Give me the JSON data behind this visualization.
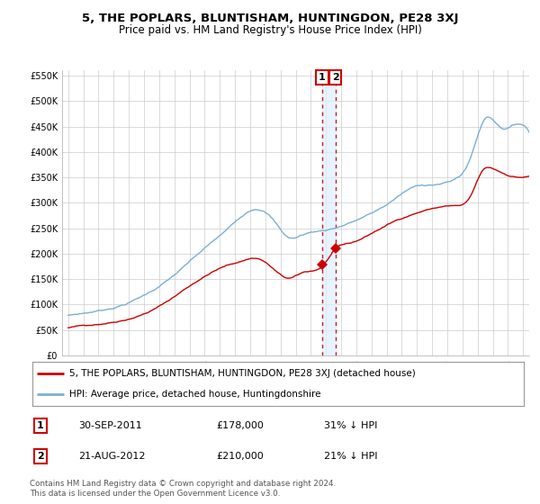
{
  "title": "5, THE POPLARS, BLUNTISHAM, HUNTINGDON, PE28 3XJ",
  "subtitle": "Price paid vs. HM Land Registry's House Price Index (HPI)",
  "hpi_color": "#7bafd4",
  "price_color": "#cc0000",
  "vline_color": "#cc0000",
  "sale1_date": 2011.75,
  "sale1_price": 178000,
  "sale1_label": "1",
  "sale1_text": "30-SEP-2011",
  "sale1_pct": "31% ↓ HPI",
  "sale2_date": 2012.62,
  "sale2_price": 210000,
  "sale2_label": "2",
  "sale2_text": "21-AUG-2012",
  "sale2_pct": "21% ↓ HPI",
  "ylim": [
    0,
    560000
  ],
  "yticks": [
    0,
    50000,
    100000,
    150000,
    200000,
    250000,
    300000,
    350000,
    400000,
    450000,
    500000,
    550000
  ],
  "legend_line1": "5, THE POPLARS, BLUNTISHAM, HUNTINGDON, PE28 3XJ (detached house)",
  "legend_line2": "HPI: Average price, detached house, Huntingdonshire",
  "footer": "Contains HM Land Registry data © Crown copyright and database right 2024.\nThis data is licensed under the Open Government Licence v3.0.",
  "bg_color": "#ffffff",
  "grid_color": "#cccccc",
  "shade_color": "#ddeeff"
}
